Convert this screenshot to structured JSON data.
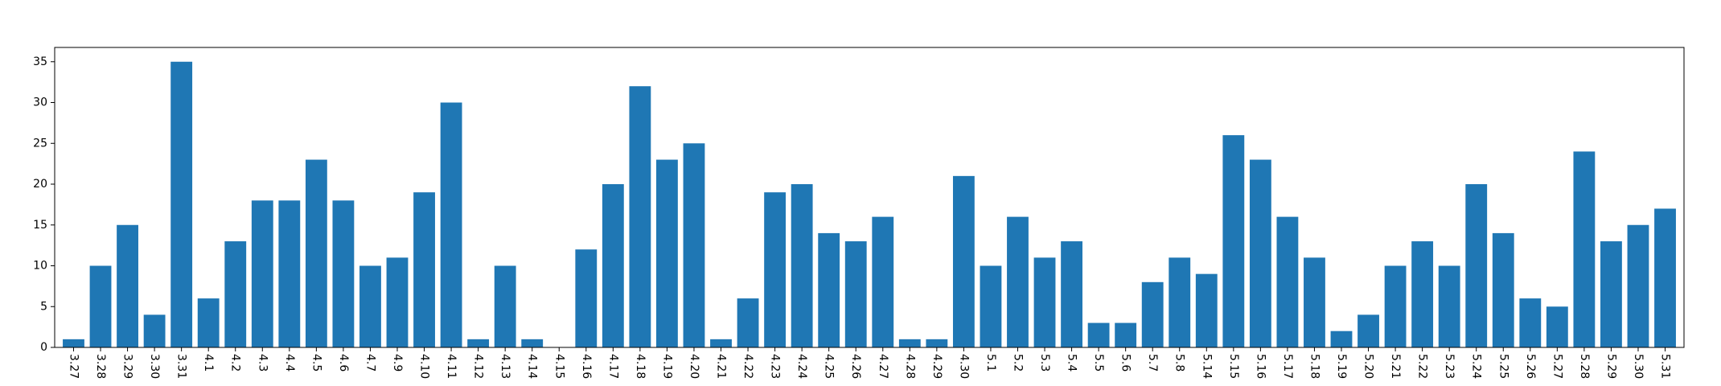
{
  "chart_data": {
    "type": "bar",
    "categories": [
      "3.27",
      "3.28",
      "3.29",
      "3.30",
      "3.31",
      "4.1",
      "4.2",
      "4.3",
      "4.4",
      "4.5",
      "4.6",
      "4.7",
      "4.9",
      "4.10",
      "4.11",
      "4.12",
      "4.13",
      "4.14",
      "4.15",
      "4.16",
      "4.17",
      "4.18",
      "4.19",
      "4.20",
      "4.21",
      "4.22",
      "4.23",
      "4.24",
      "4.25",
      "4.26",
      "4.27",
      "4.28",
      "4.29",
      "4.30",
      "5.1",
      "5.2",
      "5.3",
      "5.4",
      "5.5",
      "5.6",
      "5.7",
      "5.8",
      "5.14",
      "5.15",
      "5.16",
      "5.17",
      "5.18",
      "5.19",
      "5.20",
      "5.21",
      "5.22",
      "5.23",
      "5.24",
      "5.25",
      "5.26",
      "5.27",
      "5.28",
      "5.29",
      "5.30",
      "5.31"
    ],
    "values": [
      1,
      10,
      15,
      4,
      35,
      6,
      13,
      18,
      18,
      23,
      18,
      10,
      11,
      19,
      30,
      1,
      10,
      1,
      0,
      12,
      20,
      32,
      23,
      25,
      1,
      6,
      19,
      20,
      14,
      13,
      16,
      1,
      1,
      21,
      10,
      16,
      11,
      13,
      3,
      3,
      8,
      11,
      9,
      26,
      23,
      16,
      11,
      2,
      4,
      10,
      13,
      10,
      20,
      14,
      6,
      5,
      24,
      13,
      15,
      17
    ],
    "yticks": [
      0,
      5,
      10,
      15,
      20,
      25,
      30,
      35
    ],
    "ylim": [
      0,
      36.75
    ],
    "bar_color": "#1f77b4",
    "title": "",
    "xlabel": "",
    "ylabel": "",
    "grid": false,
    "legend": false
  }
}
